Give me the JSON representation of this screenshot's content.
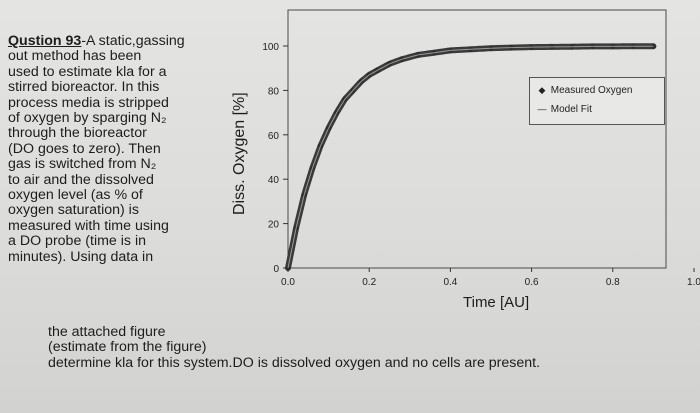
{
  "question": {
    "label": "Qustion 93",
    "lines": [
      "-A static,gassing",
      "out method has been",
      "used to estimate kla for a",
      "stirred bioreactor. In this",
      "process media is stripped",
      "of oxygen by sparging N₂",
      "through the bioreactor",
      "(DO goes to zero). Then",
      "gas is switched from N₂",
      "to air and the dissolved",
      "oxygen level (as % of",
      "oxygen saturation) is",
      "measured with time using",
      "a DO probe (time is in",
      "minutes). Using data in",
      "the attached figure",
      "(estimate from the figure)",
      "determine kla for this system.DO is dissolved oxygen and no cells are present."
    ]
  },
  "chart_data": {
    "type": "line",
    "title": "",
    "xlabel": "Time [AU]",
    "ylabel": "Diss. Oxygen [%]",
    "xlim": [
      0.0,
      1.0
    ],
    "ylim": [
      0,
      100
    ],
    "x_ticks": [
      "0.0",
      "0.2",
      "0.4",
      "0.6",
      "0.8",
      "1.0"
    ],
    "y_ticks": [
      "0",
      "20",
      "40",
      "60",
      "80",
      "100"
    ],
    "legend_position": "top-right",
    "grid": false,
    "series": [
      {
        "name": "Measured Oxygen",
        "marker": "diamond",
        "color": "#3a3a3a",
        "x": [
          0.0,
          0.02,
          0.04,
          0.06,
          0.08,
          0.1,
          0.12,
          0.14,
          0.16,
          0.18,
          0.2,
          0.22,
          0.25,
          0.28,
          0.32,
          0.36,
          0.4,
          0.45,
          0.5,
          0.55,
          0.6,
          0.65,
          0.7,
          0.75,
          0.8,
          0.85,
          0.9
        ],
        "y": [
          0,
          18,
          33,
          45,
          55,
          63,
          70,
          76,
          80,
          84,
          87,
          89,
          92,
          94,
          96,
          97,
          98,
          98.5,
          99,
          99.3,
          99.5,
          99.6,
          99.7,
          99.8,
          99.8,
          99.9,
          99.9
        ]
      },
      {
        "name": "Model Fit",
        "marker": "line",
        "color": "#555555",
        "x": [
          0.0,
          0.02,
          0.04,
          0.06,
          0.08,
          0.1,
          0.12,
          0.14,
          0.16,
          0.18,
          0.2,
          0.22,
          0.25,
          0.28,
          0.32,
          0.36,
          0.4,
          0.45,
          0.5,
          0.55,
          0.6,
          0.65,
          0.7,
          0.75,
          0.8,
          0.85,
          0.9
        ],
        "y": [
          0,
          18,
          33,
          45,
          55,
          63,
          70,
          76,
          80,
          84,
          87,
          89,
          92,
          94,
          96,
          97,
          98,
          98.5,
          99,
          99.3,
          99.5,
          99.6,
          99.7,
          99.8,
          99.8,
          99.9,
          99.9
        ]
      }
    ]
  }
}
